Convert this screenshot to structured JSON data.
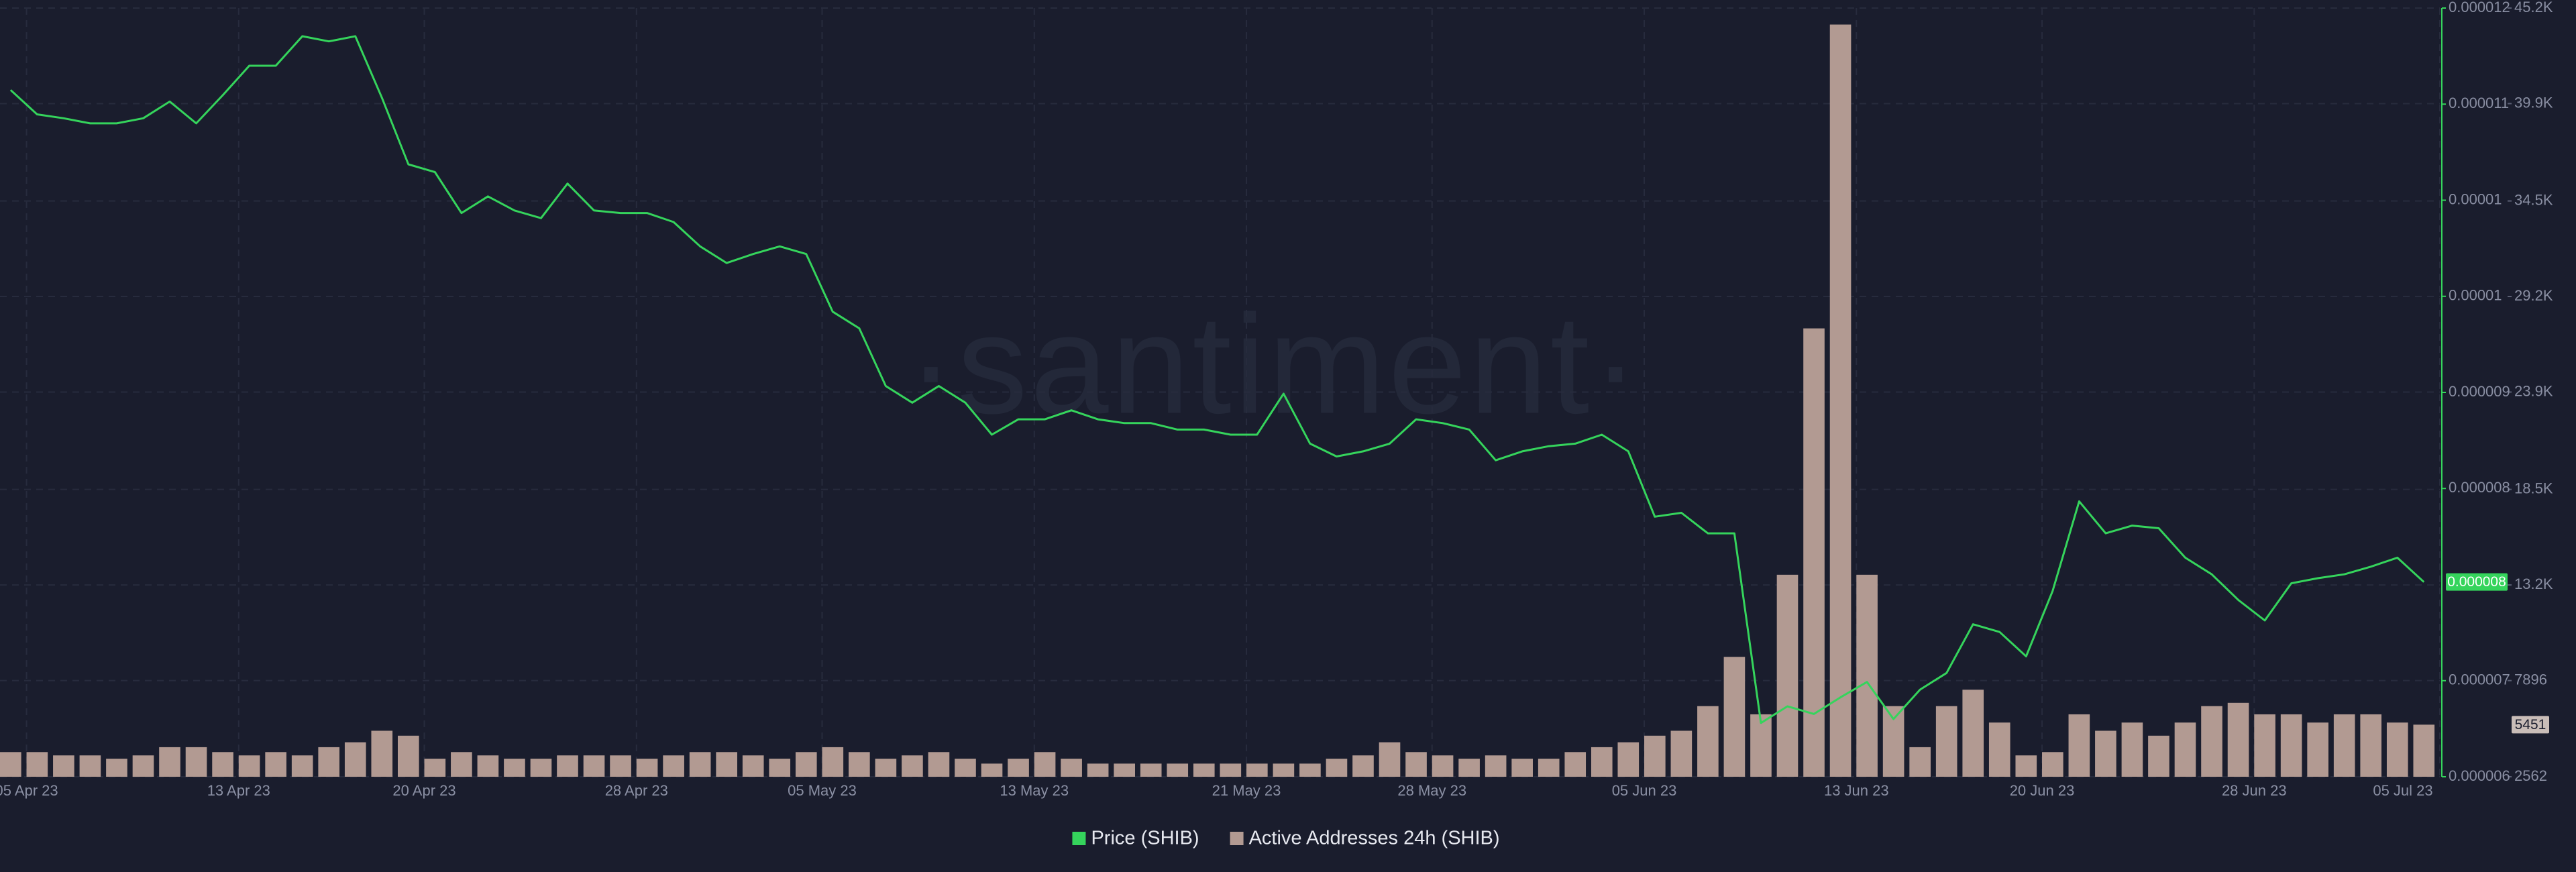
{
  "chart_data": {
    "type": "line-bar",
    "watermark": "·santiment·",
    "x": [
      "2023-04-04",
      "2023-04-05",
      "2023-04-06",
      "2023-04-07",
      "2023-04-08",
      "2023-04-09",
      "2023-04-10",
      "2023-04-11",
      "2023-04-12",
      "2023-04-13",
      "2023-04-14",
      "2023-04-15",
      "2023-04-16",
      "2023-04-17",
      "2023-04-18",
      "2023-04-19",
      "2023-04-20",
      "2023-04-21",
      "2023-04-22",
      "2023-04-23",
      "2023-04-24",
      "2023-04-25",
      "2023-04-26",
      "2023-04-27",
      "2023-04-28",
      "2023-04-29",
      "2023-04-30",
      "2023-05-01",
      "2023-05-02",
      "2023-05-03",
      "2023-05-04",
      "2023-05-05",
      "2023-05-06",
      "2023-05-07",
      "2023-05-08",
      "2023-05-09",
      "2023-05-10",
      "2023-05-11",
      "2023-05-12",
      "2023-05-13",
      "2023-05-14",
      "2023-05-15",
      "2023-05-16",
      "2023-05-17",
      "2023-05-18",
      "2023-05-19",
      "2023-05-20",
      "2023-05-21",
      "2023-05-22",
      "2023-05-23",
      "2023-05-24",
      "2023-05-25",
      "2023-05-26",
      "2023-05-27",
      "2023-05-28",
      "2023-05-29",
      "2023-05-30",
      "2023-05-31",
      "2023-06-01",
      "2023-06-02",
      "2023-06-03",
      "2023-06-04",
      "2023-06-05",
      "2023-06-06",
      "2023-06-07",
      "2023-06-08",
      "2023-06-09",
      "2023-06-10",
      "2023-06-11",
      "2023-06-12",
      "2023-06-13",
      "2023-06-14",
      "2023-06-15",
      "2023-06-16",
      "2023-06-17",
      "2023-06-18",
      "2023-06-19",
      "2023-06-20",
      "2023-06-21",
      "2023-06-22",
      "2023-06-23",
      "2023-06-24",
      "2023-06-25",
      "2023-06-26",
      "2023-06-27",
      "2023-06-28",
      "2023-06-29",
      "2023-06-30",
      "2023-07-01",
      "2023-07-02",
      "2023-07-03",
      "2023-07-04"
    ],
    "xlim": [
      "2023-04-04",
      "2023-07-05"
    ],
    "xticks": [
      {
        "value": "2023-04-05",
        "label": "05 Apr 23"
      },
      {
        "value": "2023-04-13",
        "label": "13 Apr 23"
      },
      {
        "value": "2023-04-20",
        "label": "20 Apr 23"
      },
      {
        "value": "2023-04-28",
        "label": "28 Apr 23"
      },
      {
        "value": "2023-05-05",
        "label": "05 May 23"
      },
      {
        "value": "2023-05-13",
        "label": "13 May 23"
      },
      {
        "value": "2023-05-21",
        "label": "21 May 23"
      },
      {
        "value": "2023-05-28",
        "label": "28 May 23"
      },
      {
        "value": "2023-06-05",
        "label": "05 Jun 23"
      },
      {
        "value": "2023-06-13",
        "label": "13 Jun 23"
      },
      {
        "value": "2023-06-20",
        "label": "20 Jun 23"
      },
      {
        "value": "2023-06-28",
        "label": "28 Jun 23"
      },
      {
        "value": "2023-07-05",
        "label": "05 Jul 23"
      }
    ],
    "ylim": [
      6e-06,
      1.2e-05
    ],
    "yticks": [
      6e-06,
      {
        "value": 6.75e-06,
        "label": "0.000007"
      },
      {
        "value": 8.25e-06,
        "label": "0.000008"
      },
      9e-06,
      {
        "value": 9.75e-06,
        "label": "0.00001"
      },
      {
        "value": 1.05e-05,
        "label": "0.00001"
      },
      {
        "value": 1.125e-05,
        "label": "0.000011"
      },
      1.2e-05
    ],
    "y2lim": [
      2562,
      45200
    ],
    "y2ticks": [
      2562,
      7896,
      {
        "value": 13200,
        "label": "13.2K"
      },
      {
        "value": 18500,
        "label": "18.5K"
      },
      {
        "value": 23900,
        "label": "23.9K"
      },
      {
        "value": 29200,
        "label": "29.2K"
      },
      {
        "value": 34500,
        "label": "34.5K"
      },
      {
        "value": 39900,
        "label": "39.9K"
      },
      {
        "value": 45200,
        "label": "45.2K"
      }
    ],
    "grid": true,
    "legend": "bottom",
    "series": [
      {
        "name": "Price (SHIB)",
        "type": "line",
        "color": "#35d45c",
        "values": [
          1.136e-05,
          1.117e-05,
          1.114e-05,
          1.11e-05,
          1.11e-05,
          1.114e-05,
          1.127e-05,
          1.11e-05,
          1.132e-05,
          1.155e-05,
          1.155e-05,
          1.178e-05,
          1.174e-05,
          1.178e-05,
          1.13e-05,
          1.078e-05,
          1.072e-05,
          1.04e-05,
          1.053e-05,
          1.042e-05,
          1.036e-05,
          1.063e-05,
          1.042e-05,
          1.04e-05,
          1.04e-05,
          1.033e-05,
          1.014e-05,
          1.001e-05,
          1.008e-05,
          1.014e-05,
          1.008e-05,
          9.63e-06,
          9.5e-06,
          9.05e-06,
          8.92e-06,
          9.05e-06,
          8.92e-06,
          8.67e-06,
          8.79e-06,
          8.79e-06,
          8.86e-06,
          8.79e-06,
          8.76e-06,
          8.76e-06,
          8.71e-06,
          8.71e-06,
          8.67e-06,
          8.67e-06,
          8.99e-06,
          8.6e-06,
          8.5e-06,
          8.54e-06,
          8.6e-06,
          8.79e-06,
          8.76e-06,
          8.71e-06,
          8.47e-06,
          8.54e-06,
          8.58e-06,
          8.6e-06,
          8.67e-06,
          8.54e-06,
          8.03e-06,
          8.06e-06,
          7.9e-06,
          7.9e-06,
          6.42e-06,
          6.55e-06,
          6.49e-06,
          6.62e-06,
          6.74e-06,
          6.45e-06,
          6.68e-06,
          6.81e-06,
          7.19e-06,
          7.13e-06,
          6.94e-06,
          7.45e-06,
          8.15e-06,
          7.9e-06,
          7.96e-06,
          7.94e-06,
          7.71e-06,
          7.58e-06,
          7.38e-06,
          7.22e-06,
          7.51e-06,
          7.55e-06,
          7.58e-06,
          7.64e-06,
          7.71e-06,
          7.52e-06
        ],
        "value_labels": [
          null,
          null,
          null,
          null,
          null,
          null,
          null,
          null,
          null,
          null,
          null,
          null,
          null,
          null,
          null,
          null,
          null,
          null,
          null,
          null,
          null,
          null,
          null,
          null,
          null,
          null,
          null,
          null,
          null,
          null,
          null,
          null,
          null,
          null,
          null,
          null,
          null,
          null,
          null,
          null,
          null,
          null,
          null,
          null,
          null,
          null,
          null,
          null,
          null,
          null,
          null,
          null,
          null,
          null,
          null,
          null,
          null,
          null,
          null,
          null,
          null,
          null,
          null,
          null,
          null,
          null,
          null,
          null,
          null,
          null,
          null,
          null,
          null,
          null,
          null,
          null,
          null,
          null,
          null,
          null,
          null,
          null,
          null,
          null,
          null,
          null,
          null,
          null,
          null,
          null,
          null,
          "0.000008"
        ]
      },
      {
        "name": "Active Addresses 24h (SHIB)",
        "type": "bar",
        "axis": "y2",
        "color": "#b29a92",
        "values": [
          3929,
          3929,
          3746,
          3746,
          3564,
          3746,
          4202,
          4202,
          3929,
          3746,
          3929,
          3746,
          4202,
          4475,
          5113,
          4840,
          3564,
          3929,
          3746,
          3564,
          3564,
          3746,
          3746,
          3746,
          3564,
          3746,
          3929,
          3929,
          3746,
          3564,
          3929,
          4202,
          3929,
          3564,
          3746,
          3929,
          3564,
          3291,
          3564,
          3929,
          3564,
          3291,
          3291,
          3291,
          3291,
          3291,
          3291,
          3291,
          3291,
          3291,
          3564,
          3746,
          4475,
          3929,
          3746,
          3564,
          3746,
          3564,
          3564,
          3929,
          4202,
          4475,
          4840,
          5113,
          6479,
          9212,
          6024,
          13767,
          27432,
          44286,
          13767,
          6479,
          4202,
          6479,
          7390,
          5568,
          3746,
          3929,
          6024,
          5113,
          5568,
          4840,
          5568,
          6479,
          6662,
          6024,
          6024,
          5568,
          6024,
          6024,
          5568,
          5451
        ]
      }
    ]
  }
}
